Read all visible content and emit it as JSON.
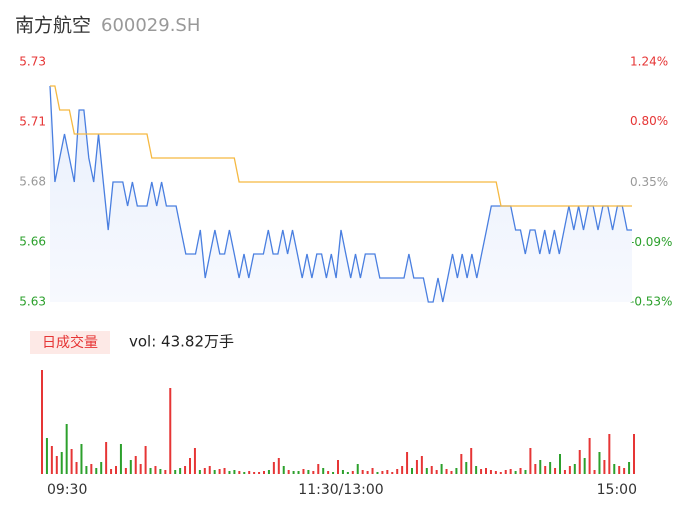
{
  "header": {
    "title": "南方航空",
    "subtitle": "600029.SH"
  },
  "chart_data": [
    {
      "type": "line",
      "ylim": [
        5.63,
        5.73
      ],
      "yticks": [
        5.73,
        {
          "value": 5.705,
          "label": "5.71"
        },
        5.68,
        {
          "value": 5.655,
          "label": "5.66"
        },
        5.63
      ],
      "y2lim": [
        -0.53,
        1.24
      ],
      "y2ticks": [
        {
          "value": 1.24,
          "label": "1.24%"
        },
        {
          "value": 0.8,
          "label": "0.80%"
        },
        {
          "value": 0.35,
          "label": "0.35%"
        },
        {
          "value": -0.09,
          "label": "-0.09%"
        },
        {
          "value": -0.53,
          "label": "-0.53%"
        }
      ],
      "ytick_colors": [
        "#e63535",
        "#e63535",
        "#999999",
        "#2ca02c",
        "#2ca02c"
      ],
      "series": [
        {
          "color": "#4a7fe0",
          "area": true,
          "values": [
            5.72,
            5.68,
            5.69,
            5.7,
            5.69,
            5.68,
            5.71,
            5.71,
            5.69,
            5.68,
            5.7,
            5.68,
            5.66,
            5.68,
            5.68,
            5.68,
            5.67,
            5.68,
            5.67,
            5.67,
            5.67,
            5.68,
            5.67,
            5.68,
            5.67,
            5.67,
            5.67,
            5.66,
            5.65,
            5.65,
            5.65,
            5.66,
            5.64,
            5.65,
            5.66,
            5.65,
            5.65,
            5.66,
            5.65,
            5.64,
            5.65,
            5.64,
            5.65,
            5.65,
            5.65,
            5.66,
            5.65,
            5.65,
            5.66,
            5.65,
            5.66,
            5.65,
            5.64,
            5.65,
            5.64,
            5.65,
            5.65,
            5.64,
            5.65,
            5.64,
            5.66,
            5.65,
            5.64,
            5.65,
            5.64,
            5.65,
            5.65,
            5.65,
            5.64,
            5.64,
            5.64,
            5.64,
            5.64,
            5.64,
            5.65,
            5.64,
            5.64,
            5.64,
            5.63,
            5.63,
            5.64,
            5.63,
            5.64,
            5.65,
            5.64,
            5.65,
            5.64,
            5.65,
            5.64,
            5.65,
            5.66,
            5.67,
            5.67,
            5.67,
            5.67,
            5.67,
            5.66,
            5.66,
            5.65,
            5.66,
            5.66,
            5.65,
            5.66,
            5.65,
            5.66,
            5.65,
            5.66,
            5.67,
            5.66,
            5.67,
            5.66,
            5.67,
            5.67,
            5.66,
            5.67,
            5.67,
            5.66,
            5.67,
            5.67,
            5.66,
            5.66
          ]
        },
        {
          "color": "#f5b942",
          "values": [
            5.72,
            5.72,
            5.71,
            5.71,
            5.71,
            5.7,
            5.7,
            5.7,
            5.7,
            5.7,
            5.7,
            5.7,
            5.7,
            5.7,
            5.7,
            5.7,
            5.7,
            5.7,
            5.7,
            5.7,
            5.7,
            5.69,
            5.69,
            5.69,
            5.69,
            5.69,
            5.69,
            5.69,
            5.69,
            5.69,
            5.69,
            5.69,
            5.69,
            5.69,
            5.69,
            5.69,
            5.69,
            5.69,
            5.69,
            5.68,
            5.68,
            5.68,
            5.68,
            5.68,
            5.68,
            5.68,
            5.68,
            5.68,
            5.68,
            5.68,
            5.68,
            5.68,
            5.68,
            5.68,
            5.68,
            5.68,
            5.68,
            5.68,
            5.68,
            5.68,
            5.68,
            5.68,
            5.68,
            5.68,
            5.68,
            5.68,
            5.68,
            5.68,
            5.68,
            5.68,
            5.68,
            5.68,
            5.68,
            5.68,
            5.68,
            5.68,
            5.68,
            5.68,
            5.68,
            5.68,
            5.68,
            5.68,
            5.68,
            5.68,
            5.68,
            5.68,
            5.68,
            5.68,
            5.68,
            5.68,
            5.68,
            5.68,
            5.68,
            5.67,
            5.67,
            5.67,
            5.67,
            5.67,
            5.67,
            5.67,
            5.67,
            5.67,
            5.67,
            5.67,
            5.67,
            5.67,
            5.67,
            5.67,
            5.67,
            5.67,
            5.67,
            5.67,
            5.67,
            5.67,
            5.67,
            5.67,
            5.67,
            5.67,
            5.67,
            5.67,
            5.67
          ]
        }
      ]
    },
    {
      "type": "bar",
      "legend_badge": "日成交量",
      "legend_text": "vol: 43.82万手",
      "ylim": [
        0,
        20800
      ],
      "up_color": "#e63535",
      "down_color": "#2ca02c",
      "x_labels": [
        "09:30",
        "11:30/13:00",
        "15:00"
      ],
      "values": [
        20800,
        7200,
        5600,
        3600,
        4400,
        10000,
        5000,
        2400,
        6000,
        1600,
        2000,
        1200,
        2400,
        6400,
        1000,
        1600,
        6000,
        1200,
        2800,
        3600,
        2000,
        5600,
        1200,
        1600,
        1000,
        800,
        17200,
        800,
        1200,
        1600,
        3200,
        5200,
        800,
        1200,
        1600,
        800,
        1000,
        1200,
        600,
        800,
        600,
        400,
        600,
        400,
        400,
        600,
        800,
        2400,
        3200,
        1600,
        800,
        600,
        600,
        1000,
        800,
        600,
        2000,
        1200,
        600,
        400,
        2800,
        800,
        400,
        600,
        2000,
        800,
        600,
        1200,
        400,
        600,
        800,
        400,
        1000,
        1600,
        4400,
        1200,
        2800,
        3600,
        1200,
        1600,
        800,
        2000,
        1000,
        600,
        1200,
        4000,
        2400,
        5200,
        1600,
        1000,
        1200,
        800,
        600,
        400,
        800,
        1000,
        600,
        1200,
        800,
        5200,
        2000,
        2800,
        1600,
        2400,
        1200,
        4000,
        800,
        1600,
        2000,
        4800,
        3200,
        7200,
        800,
        4400,
        2800,
        8000,
        2000,
        1600,
        1200,
        2400,
        8000
      ]
    }
  ]
}
